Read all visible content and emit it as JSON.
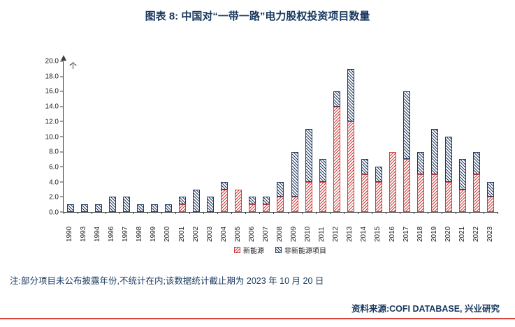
{
  "header": {
    "title": "图表 8: 中国对“一带一路”电力股权投资项目数量"
  },
  "chart_data": {
    "type": "bar",
    "stacked": true,
    "title": "图表 8: 中国对“一带一路”电力股权投资项目数量",
    "xlabel": "",
    "ylabel": "个",
    "unit_label": "个",
    "ylim": [
      0,
      20
    ],
    "ytick_step": 2,
    "grid": false,
    "legend_position": "bottom",
    "categories": [
      "1990",
      "1993",
      "1994",
      "1996",
      "1997",
      "1998",
      "1999",
      "2000",
      "2001",
      "2002",
      "2003",
      "2004",
      "2005",
      "2006",
      "2007",
      "2008",
      "2009",
      "2010",
      "2011",
      "2012",
      "2013",
      "2014",
      "2015",
      "2016",
      "2017",
      "2018",
      "2019",
      "2020",
      "2021",
      "2022",
      "2023"
    ],
    "series": [
      {
        "name": "新能源",
        "color": "#C9403E",
        "hatch": "/",
        "values": [
          0,
          0,
          0,
          0,
          0,
          0,
          0,
          0,
          1,
          0,
          0,
          3,
          3,
          1,
          1,
          2,
          2,
          4,
          4,
          14,
          12,
          5,
          4,
          8,
          7,
          5,
          5,
          4,
          3,
          5,
          2
        ]
      },
      {
        "name": "非新能源项目",
        "color": "#243A5F",
        "hatch": "\\",
        "values": [
          1,
          1,
          1,
          2,
          2,
          1,
          1,
          1,
          1,
          3,
          2,
          1,
          0,
          1,
          1,
          2,
          6,
          7,
          3,
          2,
          7,
          2,
          2,
          0,
          9,
          3,
          6,
          6,
          4,
          3,
          2
        ]
      }
    ]
  },
  "footer": {
    "note": "注:部分项目未公布披露年份,不统计在内;该数据统计截止期为 2023 年 10 月 20 日",
    "source": "资料来源:COFI DATABASE, 兴业研究"
  },
  "colors": {
    "title_navy": "#17375E",
    "series_red": "#C9403E",
    "series_navy": "#243A5F",
    "bottom_rule_red": "#D8453E",
    "axis": "#3f3f3f"
  }
}
